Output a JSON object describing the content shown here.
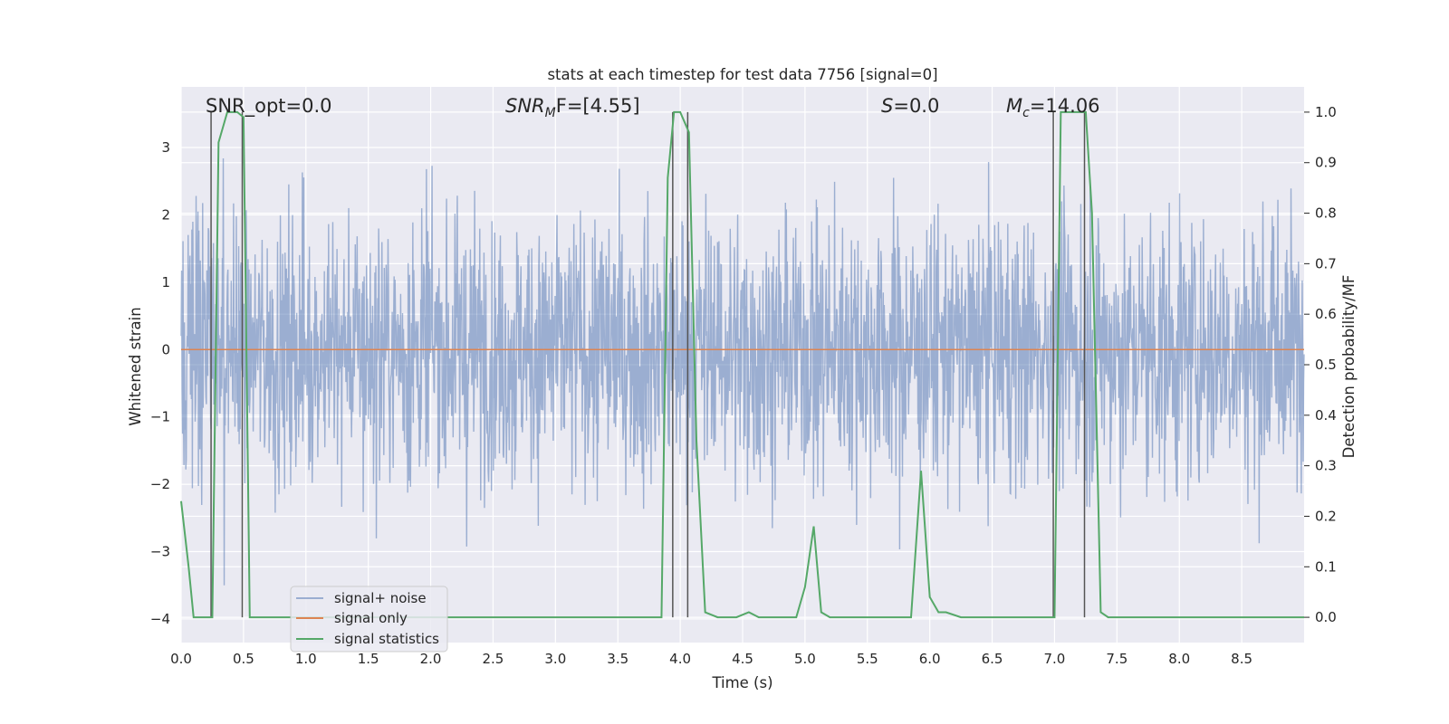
{
  "chart_data": {
    "type": "line",
    "title": "stats at each timestep for test data 7756 [signal=0]",
    "xlabel": "Time (s)",
    "ylabel_left": "Whitened strain",
    "ylabel_right": "Detection probability/MF",
    "xlim": [
      0,
      9.0
    ],
    "ylim_left": [
      -4.35,
      3.9
    ],
    "ylim_right": [
      -0.05,
      1.05
    ],
    "x_ticks": [
      0.0,
      0.5,
      1.0,
      1.5,
      2.0,
      2.5,
      3.0,
      3.5,
      4.0,
      4.5,
      5.0,
      5.5,
      6.0,
      6.5,
      7.0,
      7.5,
      8.0,
      8.5
    ],
    "x_tick_labels": [
      "0.0",
      "0.5",
      "1.0",
      "1.5",
      "2.0",
      "2.5",
      "3.0",
      "3.5",
      "4.0",
      "4.5",
      "5.0",
      "5.5",
      "6.0",
      "6.5",
      "7.0",
      "7.5",
      "8.0",
      "8.5"
    ],
    "y_left_ticks": [
      -4,
      -3,
      -2,
      -1,
      0,
      1,
      2,
      3
    ],
    "y_left_tick_labels": [
      "−4",
      "−3",
      "−2",
      "−1",
      "0",
      "1",
      "2",
      "3"
    ],
    "y_right_ticks": [
      0.0,
      0.1,
      0.2,
      0.3,
      0.4,
      0.5,
      0.6,
      0.7,
      0.8,
      0.9,
      1.0
    ],
    "y_right_tick_labels": [
      "0.0",
      "0.1",
      "0.2",
      "0.3",
      "0.4",
      "0.5",
      "0.6",
      "0.7",
      "0.8",
      "0.9",
      "1.0"
    ],
    "grid": true,
    "legend_placement": "lower-left",
    "series": [
      {
        "name": "signal+ noise",
        "color": "#4c72b0",
        "opacity": 0.5,
        "axis": "left",
        "noise_amplitude_range": [
          -3.5,
          3.4
        ],
        "noise_typical_amplitude": 1.8
      },
      {
        "name": "signal only",
        "color": "#dd8452",
        "axis": "left",
        "x": [
          0.0,
          9.0
        ],
        "y": [
          0.0,
          0.0
        ]
      },
      {
        "name": "signal statistics",
        "color": "#55a868",
        "axis": "right",
        "x": [
          0.0,
          0.06,
          0.1,
          0.25,
          0.3,
          0.37,
          0.45,
          0.5,
          0.55,
          0.6,
          3.85,
          3.9,
          3.95,
          4.0,
          4.07,
          4.13,
          4.2,
          4.3,
          4.45,
          4.55,
          4.63,
          4.75,
          4.93,
          5.0,
          5.07,
          5.13,
          5.2,
          5.85,
          5.93,
          6.0,
          6.07,
          6.13,
          6.25,
          6.7,
          6.95,
          7.0,
          7.05,
          7.08,
          7.25,
          7.3,
          7.37,
          7.43,
          7.5,
          9.0
        ],
        "y": [
          0.23,
          0.1,
          0.0,
          0.0,
          0.94,
          1.0,
          1.0,
          0.99,
          0.0,
          0.0,
          0.0,
          0.87,
          1.0,
          1.0,
          0.96,
          0.35,
          0.01,
          0.0,
          0.0,
          0.01,
          0.0,
          0.0,
          0.0,
          0.06,
          0.18,
          0.01,
          0.0,
          0.0,
          0.29,
          0.04,
          0.01,
          0.01,
          0.0,
          0.0,
          0.0,
          0.0,
          1.0,
          1.0,
          1.0,
          0.8,
          0.01,
          0.0,
          0.0,
          0.0
        ]
      }
    ],
    "vertical_lines": [
      0.24,
      0.49,
      3.94,
      4.06,
      6.99,
      7.24
    ],
    "annotations": {
      "snr_opt": "SNR_opt=0.0",
      "snr_mf_symbol": "SNR",
      "snr_mf_sub": "M",
      "snr_mf_rest": "F=[4.55]",
      "s_symbol": "S",
      "s_rest": "=0.0",
      "mc_symbol": "M",
      "mc_sub": "c",
      "mc_rest": "=14.06"
    }
  }
}
